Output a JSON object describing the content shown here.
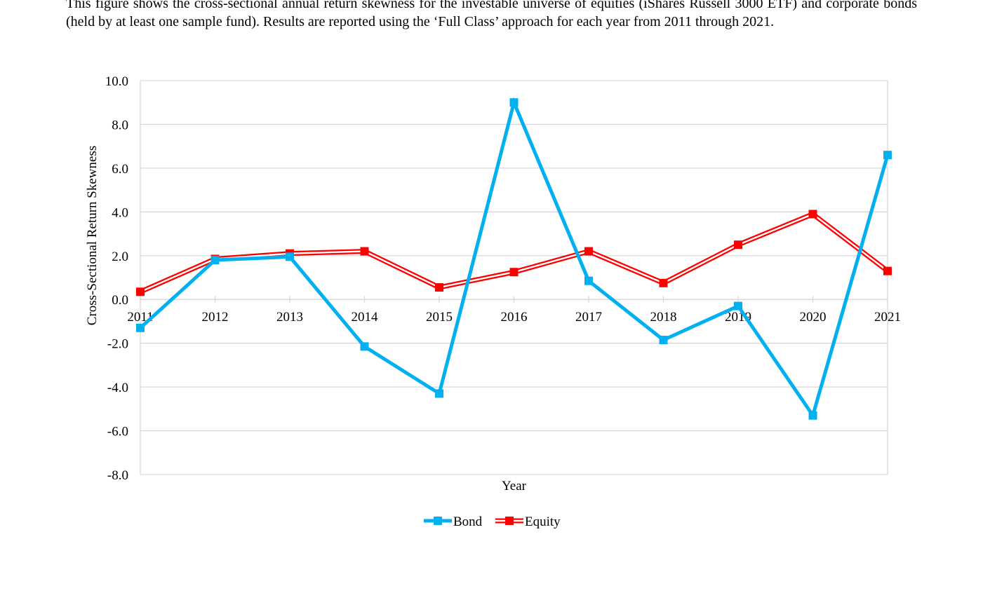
{
  "caption": "This figure shows the cross-sectional annual return skewness for the investable universe of equities (iShares Russell 3000 ETF) and corporate bonds (held by at least one sample fund). Results are reported using the ‘Full Class’ approach for each year from 2011 through 2021.",
  "chart_data": {
    "type": "line",
    "title": "",
    "xlabel": "Year",
    "ylabel": "Cross-Sectional Return Skewness",
    "ylim": [
      -8.0,
      10.0
    ],
    "ytick_step": 2.0,
    "yticks": [
      "10.0",
      "8.0",
      "6.0",
      "4.0",
      "2.0",
      "0.0",
      "-2.0",
      "-4.0",
      "-6.0",
      "-8.0"
    ],
    "categories": [
      "2011",
      "2012",
      "2013",
      "2014",
      "2015",
      "2016",
      "2017",
      "2018",
      "2019",
      "2020",
      "2021"
    ],
    "grid": true,
    "legend_position": "bottom",
    "series": [
      {
        "name": "Bond",
        "color": "#00B0F0",
        "values": [
          -1.3,
          1.8,
          1.95,
          -2.15,
          -4.3,
          9.0,
          0.85,
          -1.85,
          -0.3,
          -5.3,
          6.6
        ]
      },
      {
        "name": "Equity",
        "color": "#FF0000",
        "values": [
          0.35,
          1.85,
          2.1,
          2.2,
          0.55,
          1.25,
          2.2,
          0.75,
          2.5,
          3.9,
          1.3
        ]
      }
    ]
  }
}
